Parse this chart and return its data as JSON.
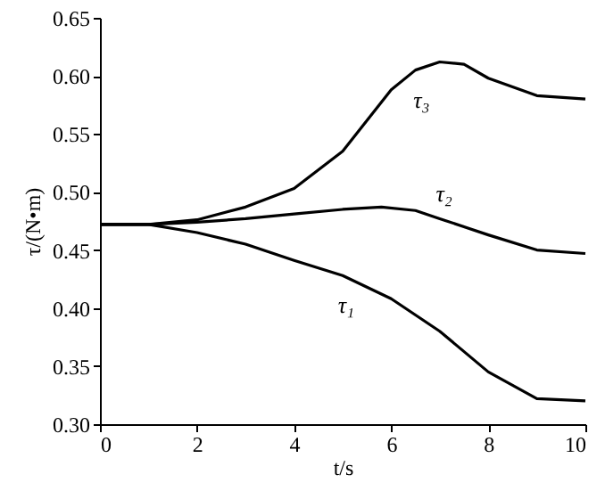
{
  "chart_data": {
    "type": "line",
    "xlabel": "t/s",
    "ylabel": "τ/(N•m)",
    "xlim": [
      0,
      10
    ],
    "xticks": [
      0,
      2,
      4,
      6,
      8,
      10
    ],
    "ylim": [
      0.3,
      0.65
    ],
    "yticks": [
      {
        "value": 0.3,
        "label": "0.30"
      },
      {
        "value": 0.35,
        "label": "0.35"
      },
      {
        "value": 0.4,
        "label": "0.40"
      },
      {
        "value": 0.45,
        "label": "0.45"
      },
      {
        "value": 0.5,
        "label": "0.50"
      },
      {
        "value": 0.55,
        "label": "0.55"
      },
      {
        "value": 0.6,
        "label": "0.60"
      },
      {
        "value": 0.65,
        "label": "0.65"
      }
    ],
    "grid": false,
    "marker": "none",
    "line_style": "solid",
    "series": [
      {
        "name": "τ₁",
        "color": "#000000",
        "x": [
          0,
          1,
          2,
          3,
          4,
          5,
          6,
          7,
          8,
          9,
          10
        ],
        "values": [
          0.472,
          0.472,
          0.465,
          0.455,
          0.441,
          0.428,
          0.408,
          0.38,
          0.345,
          0.322,
          0.32
        ]
      },
      {
        "name": "τ₂",
        "color": "#000000",
        "x": [
          0,
          1,
          2,
          3,
          4,
          5,
          5.8,
          6.5,
          7,
          8,
          9,
          10
        ],
        "values": [
          0.472,
          0.472,
          0.474,
          0.477,
          0.481,
          0.485,
          0.487,
          0.484,
          0.477,
          0.463,
          0.45,
          0.447
        ]
      },
      {
        "name": "τ₃",
        "color": "#000000",
        "x": [
          0,
          1,
          2,
          3,
          4,
          5,
          6,
          6.5,
          7,
          7.5,
          8,
          9,
          10
        ],
        "values": [
          0.472,
          0.472,
          0.476,
          0.487,
          0.503,
          0.535,
          0.588,
          0.605,
          0.612,
          0.61,
          0.598,
          0.583,
          0.58
        ]
      }
    ]
  }
}
